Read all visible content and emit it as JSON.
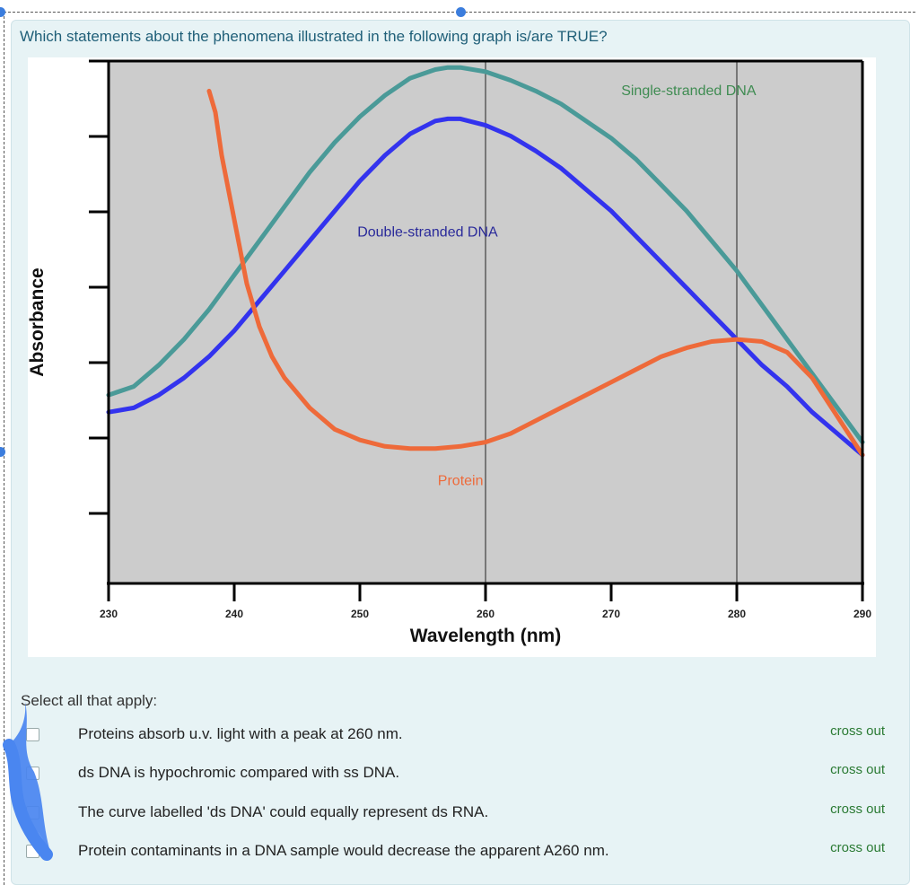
{
  "question": {
    "text": "Which statements about the phenomena illustrated in the following graph is/are TRUE?"
  },
  "chart_data": {
    "type": "line",
    "title": "",
    "xlabel": "Wavelength (nm)",
    "ylabel": "Absorbance",
    "xlim": [
      230,
      290
    ],
    "x_ticks": [
      230,
      240,
      250,
      260,
      270,
      280,
      290
    ],
    "y_ticks_labeled": false,
    "vertical_reference_lines": [
      260,
      280
    ],
    "background_color": "#cccccc",
    "series": [
      {
        "name": "Single-stranded DNA",
        "color": "#4a9a98",
        "x": [
          230,
          232,
          234,
          236,
          238,
          240,
          242,
          244,
          246,
          248,
          250,
          252,
          254,
          256,
          257,
          258,
          260,
          262,
          264,
          266,
          268,
          270,
          272,
          274,
          276,
          278,
          280,
          282,
          284,
          286,
          288,
          290
        ],
        "y": [
          0.44,
          0.46,
          0.51,
          0.57,
          0.64,
          0.72,
          0.8,
          0.88,
          0.96,
          1.03,
          1.09,
          1.14,
          1.18,
          1.2,
          1.205,
          1.205,
          1.195,
          1.175,
          1.15,
          1.12,
          1.08,
          1.04,
          0.99,
          0.93,
          0.87,
          0.8,
          0.73,
          0.65,
          0.57,
          0.49,
          0.41,
          0.33
        ]
      },
      {
        "name": "Double-stranded DNA",
        "color": "#3333ee",
        "x": [
          230,
          232,
          234,
          236,
          238,
          240,
          242,
          244,
          246,
          248,
          250,
          252,
          254,
          256,
          257,
          258,
          260,
          262,
          264,
          266,
          268,
          270,
          272,
          274,
          276,
          278,
          280,
          282,
          284,
          286,
          288,
          290
        ],
        "y": [
          0.4,
          0.41,
          0.44,
          0.48,
          0.53,
          0.59,
          0.66,
          0.73,
          0.8,
          0.87,
          0.94,
          1.0,
          1.05,
          1.08,
          1.085,
          1.085,
          1.07,
          1.045,
          1.01,
          0.97,
          0.92,
          0.87,
          0.81,
          0.75,
          0.69,
          0.63,
          0.57,
          0.51,
          0.46,
          0.4,
          0.35,
          0.3
        ]
      },
      {
        "name": "Protein",
        "color": "#ee6a3a",
        "x": [
          238,
          238.5,
          239,
          240,
          241,
          242,
          243,
          244,
          246,
          248,
          250,
          252,
          254,
          256,
          258,
          260,
          262,
          264,
          266,
          268,
          270,
          272,
          274,
          276,
          278,
          280,
          282,
          284,
          286,
          288,
          290
        ],
        "y": [
          1.15,
          1.1,
          1.0,
          0.85,
          0.7,
          0.6,
          0.53,
          0.48,
          0.41,
          0.36,
          0.335,
          0.32,
          0.315,
          0.315,
          0.32,
          0.33,
          0.35,
          0.38,
          0.41,
          0.44,
          0.47,
          0.5,
          0.53,
          0.55,
          0.565,
          0.57,
          0.565,
          0.54,
          0.48,
          0.39,
          0.3
        ]
      }
    ],
    "annotations": [
      {
        "text": "Single-stranded DNA",
        "x": 270.8,
        "y": 1.14,
        "color": "#3f8c52"
      },
      {
        "text": "Double-stranded DNA",
        "x": 249.8,
        "y": 0.81,
        "color": "#2a2a9a"
      },
      {
        "text": "Protein",
        "x": 256.2,
        "y": 0.23,
        "color": "#ee6a3a"
      }
    ]
  },
  "instructions": {
    "select_label": "Select all that apply:"
  },
  "options": [
    {
      "text": "Proteins absorb u.v. light with a peak at 260 nm.",
      "crossout": "cross out"
    },
    {
      "text": "ds DNA is hypochromic compared with ss DNA.",
      "crossout": "cross out"
    },
    {
      "text": "The curve labelled 'ds DNA' could equally represent ds RNA.",
      "crossout": "cross out"
    },
    {
      "text": "Protein contaminants in a DNA sample would decrease the apparent A260 nm.",
      "crossout": "cross out"
    }
  ],
  "colors": {
    "question_text": "#1f5f78",
    "crossout_link": "#2a7a33",
    "panel_background": "#e7f3f5",
    "handle": "#3b7ddd",
    "scribble": "#4a86f0"
  }
}
